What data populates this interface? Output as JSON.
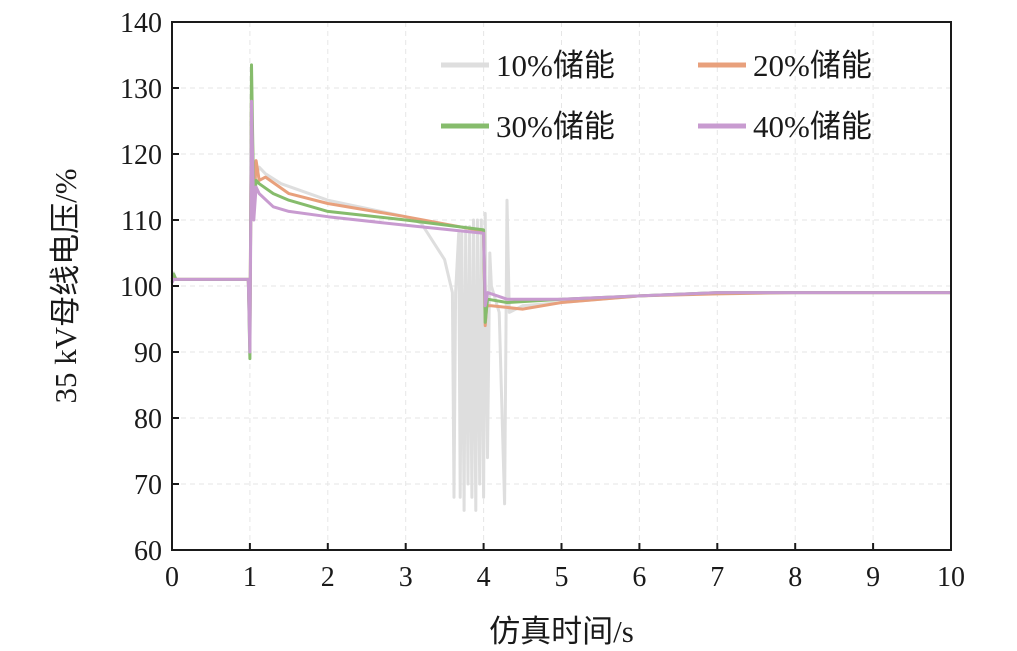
{
  "chart_data": {
    "type": "line",
    "title": "",
    "xlabel": "仿真时间/s",
    "ylabel": "35 kV母线电压/%",
    "xlim": [
      0,
      10
    ],
    "ylim": [
      60,
      140
    ],
    "x_ticks": [
      0,
      1,
      2,
      3,
      4,
      5,
      6,
      7,
      8,
      9,
      10
    ],
    "y_ticks": [
      60,
      70,
      80,
      90,
      100,
      110,
      120,
      130,
      140
    ],
    "grid": true,
    "legend_position": "top-right",
    "series": [
      {
        "name": "10%储能",
        "color": "#dedede",
        "points": [
          [
            0,
            100.5
          ],
          [
            0.02,
            102
          ],
          [
            0.05,
            101
          ],
          [
            0.98,
            101
          ],
          [
            1.0,
            93
          ],
          [
            1.02,
            118
          ],
          [
            1.06,
            116
          ],
          [
            1.12,
            118
          ],
          [
            1.2,
            117
          ],
          [
            1.4,
            115.5
          ],
          [
            2.0,
            113
          ],
          [
            3.0,
            110.5
          ],
          [
            3.2,
            109.5
          ],
          [
            3.5,
            104
          ],
          [
            3.6,
            99
          ],
          [
            3.62,
            68
          ],
          [
            3.64,
            99
          ],
          [
            3.68,
            108
          ],
          [
            3.7,
            68
          ],
          [
            3.72,
            108
          ],
          [
            3.75,
            66
          ],
          [
            3.77,
            109
          ],
          [
            3.8,
            70
          ],
          [
            3.82,
            109
          ],
          [
            3.85,
            68
          ],
          [
            3.87,
            110
          ],
          [
            3.9,
            66
          ],
          [
            3.92,
            110
          ],
          [
            3.95,
            70
          ],
          [
            3.97,
            110
          ],
          [
            4.0,
            68
          ],
          [
            4.02,
            111
          ],
          [
            4.05,
            74
          ],
          [
            4.08,
            105
          ],
          [
            4.1,
            100
          ],
          [
            4.2,
            96
          ],
          [
            4.27,
            67
          ],
          [
            4.3,
            113
          ],
          [
            4.33,
            96
          ],
          [
            4.5,
            97
          ],
          [
            5.0,
            97.5
          ],
          [
            6.0,
            98.5
          ],
          [
            7.0,
            99
          ],
          [
            8.0,
            99
          ],
          [
            9.0,
            99
          ],
          [
            10.0,
            99
          ]
        ]
      },
      {
        "name": "20%储能",
        "color": "#e8a07c",
        "points": [
          [
            0,
            101
          ],
          [
            0.02,
            101.5
          ],
          [
            0.05,
            101
          ],
          [
            0.98,
            101
          ],
          [
            1.0,
            92
          ],
          [
            1.02,
            129
          ],
          [
            1.05,
            112
          ],
          [
            1.08,
            119
          ],
          [
            1.12,
            116
          ],
          [
            1.2,
            116.5
          ],
          [
            1.5,
            114
          ],
          [
            2.0,
            112.5
          ],
          [
            3.0,
            110.5
          ],
          [
            4.0,
            108.3
          ],
          [
            4.02,
            94
          ],
          [
            4.04,
            97
          ],
          [
            4.1,
            97
          ],
          [
            4.5,
            96.5
          ],
          [
            5.0,
            97.5
          ],
          [
            6.0,
            98.5
          ],
          [
            7.0,
            98.8
          ],
          [
            8.0,
            99
          ],
          [
            9.0,
            99
          ],
          [
            10.0,
            99
          ]
        ]
      },
      {
        "name": "30%储能",
        "color": "#86bc6c",
        "points": [
          [
            0,
            101.5
          ],
          [
            0.02,
            101.8
          ],
          [
            0.05,
            101
          ],
          [
            0.98,
            101
          ],
          [
            1.0,
            89
          ],
          [
            1.02,
            133.5
          ],
          [
            1.05,
            112
          ],
          [
            1.08,
            116
          ],
          [
            1.12,
            115.5
          ],
          [
            1.3,
            114
          ],
          [
            1.5,
            113
          ],
          [
            2.0,
            111.3
          ],
          [
            3.0,
            110
          ],
          [
            4.0,
            108.5
          ],
          [
            4.02,
            94.5
          ],
          [
            4.05,
            98
          ],
          [
            4.3,
            97.5
          ],
          [
            5.0,
            98
          ],
          [
            6.0,
            98.5
          ],
          [
            7.0,
            99
          ],
          [
            8.0,
            99
          ],
          [
            9.0,
            99
          ],
          [
            10.0,
            99
          ]
        ]
      },
      {
        "name": "40%储能",
        "color": "#c89bd0",
        "points": [
          [
            0,
            100.5
          ],
          [
            0.02,
            101
          ],
          [
            0.05,
            101
          ],
          [
            0.98,
            101
          ],
          [
            1.0,
            90
          ],
          [
            1.02,
            128
          ],
          [
            1.05,
            110
          ],
          [
            1.08,
            115
          ],
          [
            1.12,
            114
          ],
          [
            1.3,
            112
          ],
          [
            1.5,
            111.3
          ],
          [
            2.0,
            110.5
          ],
          [
            3.0,
            109.2
          ],
          [
            4.0,
            108
          ],
          [
            4.02,
            97
          ],
          [
            4.05,
            99
          ],
          [
            4.3,
            98
          ],
          [
            5.0,
            98
          ],
          [
            6.0,
            98.5
          ],
          [
            7.0,
            99
          ],
          [
            8.0,
            99
          ],
          [
            9.0,
            99
          ],
          [
            10.0,
            99
          ]
        ]
      }
    ]
  }
}
